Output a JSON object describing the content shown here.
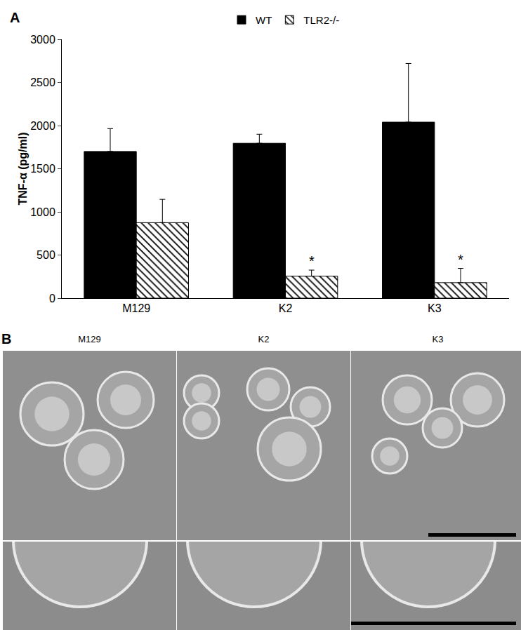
{
  "chart_data": {
    "type": "bar",
    "panel_label": "A",
    "categories": [
      "M129",
      "K2",
      "K3"
    ],
    "series": [
      {
        "name": "WT",
        "color": "#000000",
        "marker": "solid",
        "values": [
          1700,
          1795,
          2040
        ],
        "errors": [
          265,
          105,
          680
        ]
      },
      {
        "name": "TLR2-/-",
        "color": "#000000",
        "marker": "hatch",
        "values": [
          875,
          255,
          180
        ],
        "errors": [
          270,
          70,
          165
        ]
      }
    ],
    "y_label": "TNF-α (pg/ml)",
    "ylim": [
      0,
      3000
    ],
    "yticks": [
      0,
      500,
      1000,
      1500,
      2000,
      2500,
      3000
    ],
    "grid": false,
    "legend": "top",
    "annotations": [
      {
        "text": "*",
        "category": "K2",
        "series": "TLR2-/-"
      },
      {
        "text": "*",
        "category": "K3",
        "series": "TLR2-/-"
      }
    ]
  },
  "panel_b": {
    "label": "B",
    "images": [
      "M129",
      "K2",
      "K3"
    ]
  }
}
